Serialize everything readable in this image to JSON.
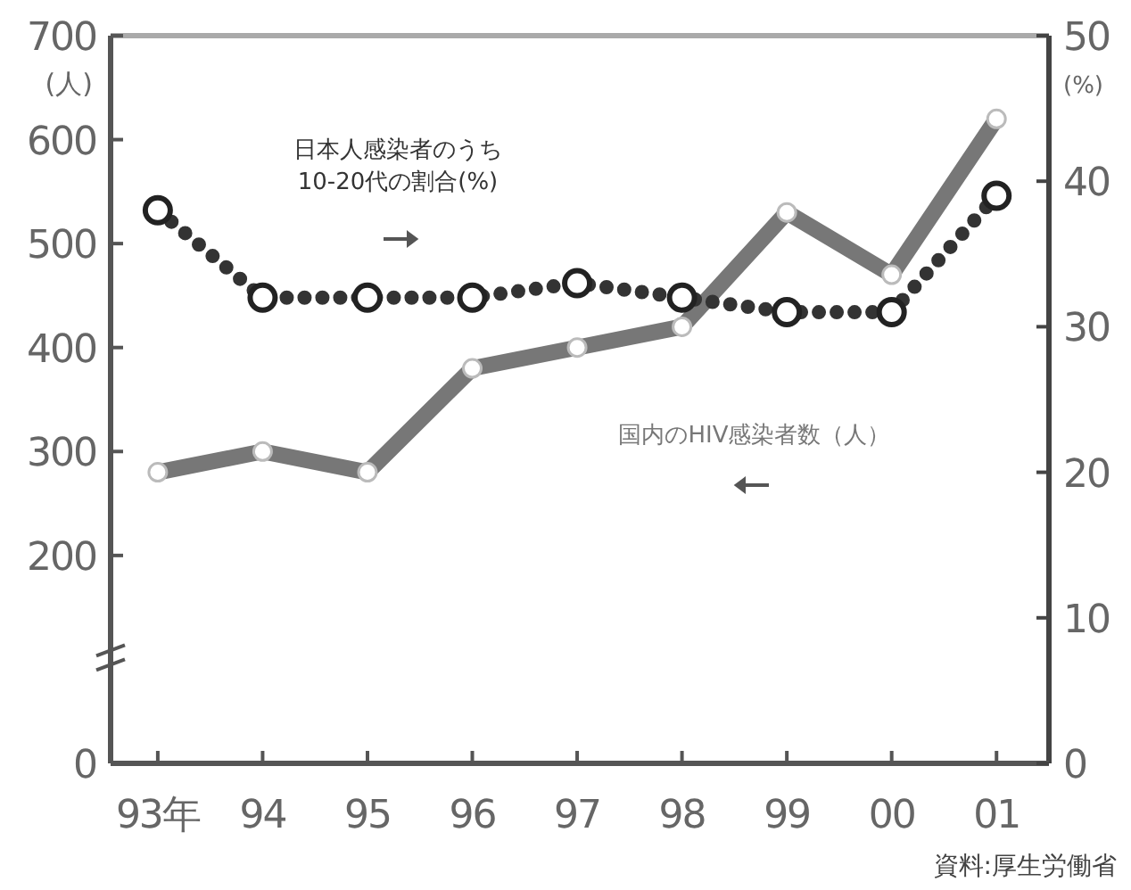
{
  "chart_data": {
    "type": "line",
    "categories": [
      "93年",
      "94",
      "95",
      "96",
      "97",
      "98",
      "99",
      "00",
      "01"
    ],
    "series": [
      {
        "name": "国内のHIV感染者数（人）",
        "color": "#777777",
        "values": [
          280,
          300,
          280,
          380,
          400,
          420,
          530,
          470,
          620
        ],
        "line_style": "solid"
      },
      {
        "name": "日本人感染者のうち10-20代の割合(%)",
        "color": "#333333",
        "axis": "y2",
        "values": [
          38,
          32,
          32,
          32,
          33,
          32,
          31,
          31,
          39
        ],
        "line_style": "dotted"
      }
    ],
    "ylabel": "(人)",
    "y2label": "(%)",
    "ylim": [
      0,
      700
    ],
    "yticks": [
      0,
      200,
      300,
      400,
      500,
      600,
      700
    ],
    "y2lim": [
      0,
      50
    ],
    "y2ticks": [
      0,
      10,
      20,
      30,
      40,
      50
    ],
    "marker": "circle",
    "grid": false,
    "legend": false,
    "annotations": [
      "資料:厚生労働省"
    ]
  }
}
